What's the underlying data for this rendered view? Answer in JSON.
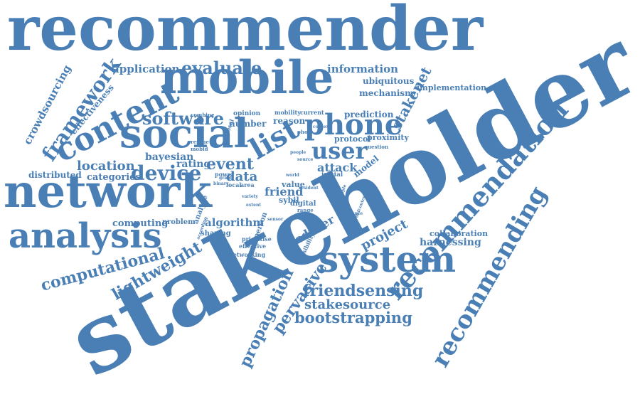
{
  "color": "#4a7fb5",
  "words": [
    {
      "text": "stakeholder",
      "weight": 1.0
    },
    {
      "text": "recommender",
      "weight": 0.9
    },
    {
      "text": "mobile",
      "weight": 0.75
    },
    {
      "text": "network",
      "weight": 0.7
    },
    {
      "text": "social",
      "weight": 0.6
    },
    {
      "text": "system",
      "weight": 0.58
    },
    {
      "text": "analysis",
      "weight": 0.55
    },
    {
      "text": "content",
      "weight": 0.5
    },
    {
      "text": "recommendation",
      "weight": 0.5
    },
    {
      "text": "phone",
      "weight": 0.5
    },
    {
      "text": "recommending",
      "weight": 0.45
    },
    {
      "text": "user",
      "weight": 0.42
    },
    {
      "text": "list",
      "weight": 0.4
    },
    {
      "text": "framework",
      "weight": 0.36
    },
    {
      "text": "device",
      "weight": 0.34
    },
    {
      "text": "software",
      "weight": 0.3
    },
    {
      "text": "evaluate",
      "weight": 0.3
    },
    {
      "text": "computational",
      "weight": 0.28
    },
    {
      "text": "lightweight",
      "weight": 0.28
    },
    {
      "text": "stakenet",
      "weight": 0.26
    },
    {
      "text": "event",
      "weight": 0.28
    },
    {
      "text": "friendsensing",
      "weight": 0.28
    },
    {
      "text": "bootstrapping",
      "weight": 0.26
    },
    {
      "text": "stakesource",
      "weight": 0.26
    },
    {
      "text": "propagation",
      "weight": 0.26
    },
    {
      "text": "pervasive",
      "weight": 0.26
    },
    {
      "text": "producer",
      "weight": 0.22
    },
    {
      "text": "project",
      "weight": 0.22
    },
    {
      "text": "location",
      "weight": 0.22
    },
    {
      "text": "crowdsourcing",
      "weight": 0.2
    },
    {
      "text": "information",
      "weight": 0.2
    },
    {
      "text": "application",
      "weight": 0.2
    },
    {
      "text": "attack",
      "weight": 0.2
    },
    {
      "text": "friend",
      "weight": 0.2
    },
    {
      "text": "data",
      "weight": 0.2
    },
    {
      "text": "rating",
      "weight": 0.18
    },
    {
      "text": "bayesian",
      "weight": 0.18
    },
    {
      "text": "categories",
      "weight": 0.16
    },
    {
      "text": "distributed",
      "weight": 0.16
    },
    {
      "text": "effectiveness",
      "weight": 0.16
    },
    {
      "text": "algorithm",
      "weight": 0.18
    },
    {
      "text": "computing",
      "weight": 0.16
    },
    {
      "text": "harnessing",
      "weight": 0.16
    },
    {
      "text": "collaboration",
      "weight": 0.14
    },
    {
      "text": "implementation",
      "weight": 0.14
    },
    {
      "text": "ubiquitous",
      "weight": 0.14
    },
    {
      "text": "mechanism",
      "weight": 0.14
    },
    {
      "text": "prediction",
      "weight": 0.14
    },
    {
      "text": "protocol",
      "weight": 0.14
    },
    {
      "text": "proximity",
      "weight": 0.14
    },
    {
      "text": "model",
      "weight": 0.14
    },
    {
      "text": "reason",
      "weight": 0.14
    },
    {
      "text": "number",
      "weight": 0.14
    },
    {
      "text": "opinion",
      "weight": 0.12
    },
    {
      "text": "mobility",
      "weight": 0.12
    },
    {
      "text": "current",
      "weight": 0.12
    },
    {
      "text": "problem",
      "weight": 0.12
    },
    {
      "text": "sharing",
      "weight": 0.12
    },
    {
      "text": "networking",
      "weight": 0.12
    },
    {
      "text": "feasibility",
      "weight": 0.1
    },
    {
      "text": "value",
      "weight": 0.14
    },
    {
      "text": "sybil",
      "weight": 0.14
    },
    {
      "text": "digital",
      "weight": 0.12
    },
    {
      "text": "range",
      "weight": 0.1
    },
    {
      "text": "person",
      "weight": 0.12
    },
    {
      "text": "initial",
      "weight": 0.12
    },
    {
      "text": "question",
      "weight": 0.1
    },
    {
      "text": "analyse",
      "weight": 0.12
    },
    {
      "text": "proposal",
      "weight": 0.1
    },
    {
      "text": "combine",
      "weight": 0.1
    },
    {
      "text": "rescue",
      "weight": 0.1
    },
    {
      "text": "mobid",
      "weight": 0.1
    },
    {
      "text": "power",
      "weight": 0.1
    },
    {
      "text": "local",
      "weight": 0.1
    },
    {
      "text": "area",
      "weight": 0.1
    },
    {
      "text": "binary",
      "weight": 0.08
    },
    {
      "text": "effective",
      "weight": 0.1
    },
    {
      "text": "prioritise",
      "weight": 0.1
    },
    {
      "text": "according",
      "weight": 0.08
    },
    {
      "text": "photo",
      "weight": 0.1
    },
    {
      "text": "context",
      "weight": 0.1
    },
    {
      "text": "defence",
      "weight": 0.08
    },
    {
      "text": "defcontent",
      "weight": 0.08
    },
    {
      "text": "resident",
      "weight": 0.08
    },
    {
      "text": "source",
      "weight": 0.08
    },
    {
      "text": "variety",
      "weight": 0.08
    },
    {
      "text": "world",
      "weight": 0.08
    },
    {
      "text": "sample",
      "weight": 0.08
    },
    {
      "text": "sensor",
      "weight": 0.08
    },
    {
      "text": "extent",
      "weight": 0.08
    },
    {
      "text": "graph",
      "weight": 0.08
    },
    {
      "text": "people",
      "weight": 0.08
    }
  ]
}
